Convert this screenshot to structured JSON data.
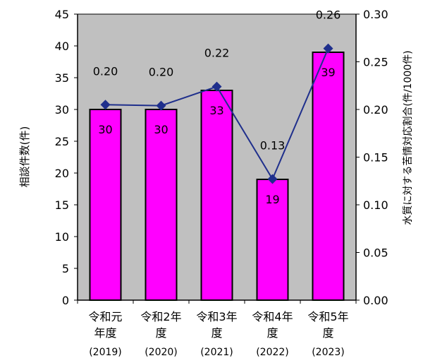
{
  "chart_data": {
    "type": "bar",
    "categories": [
      {
        "line1": "令和元",
        "line2": "年度",
        "year": "(2019)"
      },
      {
        "line1": "令和2年",
        "line2": "度",
        "year": "(2020)"
      },
      {
        "line1": "令和3年",
        "line2": "度",
        "year": "(2021)"
      },
      {
        "line1": "令和4年",
        "line2": "度",
        "year": "(2022)"
      },
      {
        "line1": "令和5年",
        "line2": "度",
        "year": "(2023)"
      }
    ],
    "series": [
      {
        "type": "bar",
        "axis": "left",
        "values": [
          30,
          30,
          33,
          19,
          39
        ],
        "labels": [
          "30",
          "30",
          "33",
          "19",
          "39"
        ],
        "color": "#ff00ff"
      },
      {
        "type": "line",
        "axis": "right",
        "values": [
          0.205,
          0.204,
          0.224,
          0.127,
          0.264
        ],
        "labels": [
          "0.20",
          "0.20",
          "0.22",
          "0.13",
          "0.26"
        ],
        "color": "#1f2f8c"
      }
    ],
    "ylabel": "相談件数(件)",
    "y2label": "水質に対する苦情対応割合(件/1000件)",
    "ylim": [
      0,
      45
    ],
    "yticks": [
      "0",
      "5",
      "10",
      "15",
      "20",
      "25",
      "30",
      "35",
      "40",
      "45"
    ],
    "y2lim": [
      0,
      0.3
    ],
    "y2ticks": [
      "0.00",
      "0.05",
      "0.10",
      "0.15",
      "0.20",
      "0.25",
      "0.30"
    ],
    "plot_background": "#c0c0c0",
    "grid": false,
    "legend": "none"
  }
}
